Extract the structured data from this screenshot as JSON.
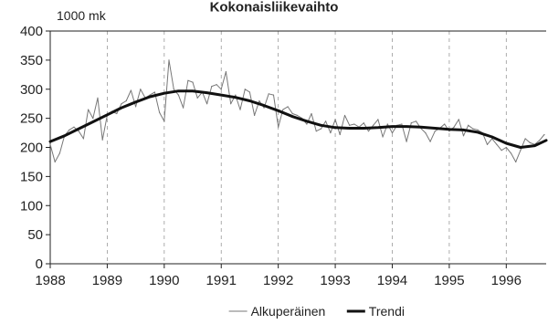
{
  "chart_data": {
    "type": "line",
    "title": "Kokonaisliikevaihto",
    "ylabel": "1000 mk",
    "xlabel": "",
    "ylim": [
      0,
      400
    ],
    "yticks": [
      "0",
      "50",
      "100",
      "150",
      "200",
      "250",
      "300",
      "350",
      "400"
    ],
    "xlim": [
      1988,
      1996.7
    ],
    "xticks": [
      "1988",
      "1989",
      "1990",
      "1991",
      "1992",
      "1993",
      "1994",
      "1995",
      "1996"
    ],
    "grid": "dashed-vertical",
    "legend": "bottom-center",
    "series": [
      {
        "name": "Alkuperäinen",
        "color": "#777777",
        "style": "thin",
        "x": [
          1988.0,
          1988.083,
          1988.167,
          1988.25,
          1988.333,
          1988.417,
          1988.5,
          1988.583,
          1988.667,
          1988.75,
          1988.833,
          1988.917,
          1989.0,
          1989.083,
          1989.167,
          1989.25,
          1989.333,
          1989.417,
          1989.5,
          1989.583,
          1989.667,
          1989.75,
          1989.833,
          1989.917,
          1990.0,
          1990.083,
          1990.167,
          1990.25,
          1990.333,
          1990.417,
          1990.5,
          1990.583,
          1990.667,
          1990.75,
          1990.833,
          1990.917,
          1991.0,
          1991.083,
          1991.167,
          1991.25,
          1991.333,
          1991.417,
          1991.5,
          1991.583,
          1991.667,
          1991.75,
          1991.833,
          1991.917,
          1992.0,
          1992.083,
          1992.167,
          1992.25,
          1992.333,
          1992.417,
          1992.5,
          1992.583,
          1992.667,
          1992.75,
          1992.833,
          1992.917,
          1993.0,
          1993.083,
          1993.167,
          1993.25,
          1993.333,
          1993.417,
          1993.5,
          1993.583,
          1993.667,
          1993.75,
          1993.833,
          1993.917,
          1994.0,
          1994.083,
          1994.167,
          1994.25,
          1994.333,
          1994.417,
          1994.5,
          1994.583,
          1994.667,
          1994.75,
          1994.833,
          1994.917,
          1995.0,
          1995.083,
          1995.167,
          1995.25,
          1995.333,
          1995.417,
          1995.5,
          1995.583,
          1995.667,
          1995.75,
          1995.833,
          1995.917,
          1996.0,
          1996.083,
          1996.167,
          1996.25,
          1996.333,
          1996.417,
          1996.5,
          1996.583,
          1996.667
        ],
        "values": [
          205,
          175,
          190,
          220,
          230,
          235,
          228,
          215,
          265,
          250,
          285,
          213,
          255,
          262,
          258,
          275,
          280,
          298,
          270,
          300,
          285,
          290,
          295,
          260,
          245,
          350,
          300,
          290,
          268,
          315,
          312,
          285,
          295,
          275,
          305,
          308,
          300,
          330,
          275,
          290,
          265,
          300,
          295,
          255,
          280,
          268,
          292,
          290,
          235,
          265,
          270,
          258,
          255,
          250,
          240,
          258,
          228,
          232,
          245,
          225,
          248,
          222,
          255,
          238,
          240,
          235,
          242,
          228,
          238,
          248,
          218,
          240,
          225,
          238,
          240,
          210,
          242,
          245,
          233,
          225,
          210,
          228,
          233,
          240,
          228,
          235,
          248,
          220,
          238,
          232,
          230,
          225,
          205,
          215,
          205,
          195,
          200,
          190,
          175,
          195,
          215,
          208,
          205,
          212,
          222
        ]
      },
      {
        "name": "Trendi",
        "color": "#111111",
        "style": "thick",
        "x": [
          1988.0,
          1988.25,
          1988.5,
          1988.75,
          1989.0,
          1989.25,
          1989.5,
          1989.75,
          1990.0,
          1990.25,
          1990.5,
          1990.75,
          1991.0,
          1991.25,
          1991.5,
          1991.75,
          1992.0,
          1992.25,
          1992.5,
          1992.75,
          1993.0,
          1993.25,
          1993.5,
          1993.75,
          1994.0,
          1994.25,
          1994.5,
          1994.75,
          1995.0,
          1995.25,
          1995.5,
          1995.75,
          1996.0,
          1996.25,
          1996.5,
          1996.7
        ],
        "values": [
          210,
          220,
          232,
          244,
          256,
          268,
          278,
          287,
          293,
          297,
          297,
          294,
          290,
          286,
          280,
          272,
          263,
          253,
          245,
          238,
          234,
          233,
          233,
          234,
          236,
          236,
          235,
          233,
          231,
          230,
          226,
          218,
          207,
          200,
          203,
          212
        ]
      }
    ]
  }
}
